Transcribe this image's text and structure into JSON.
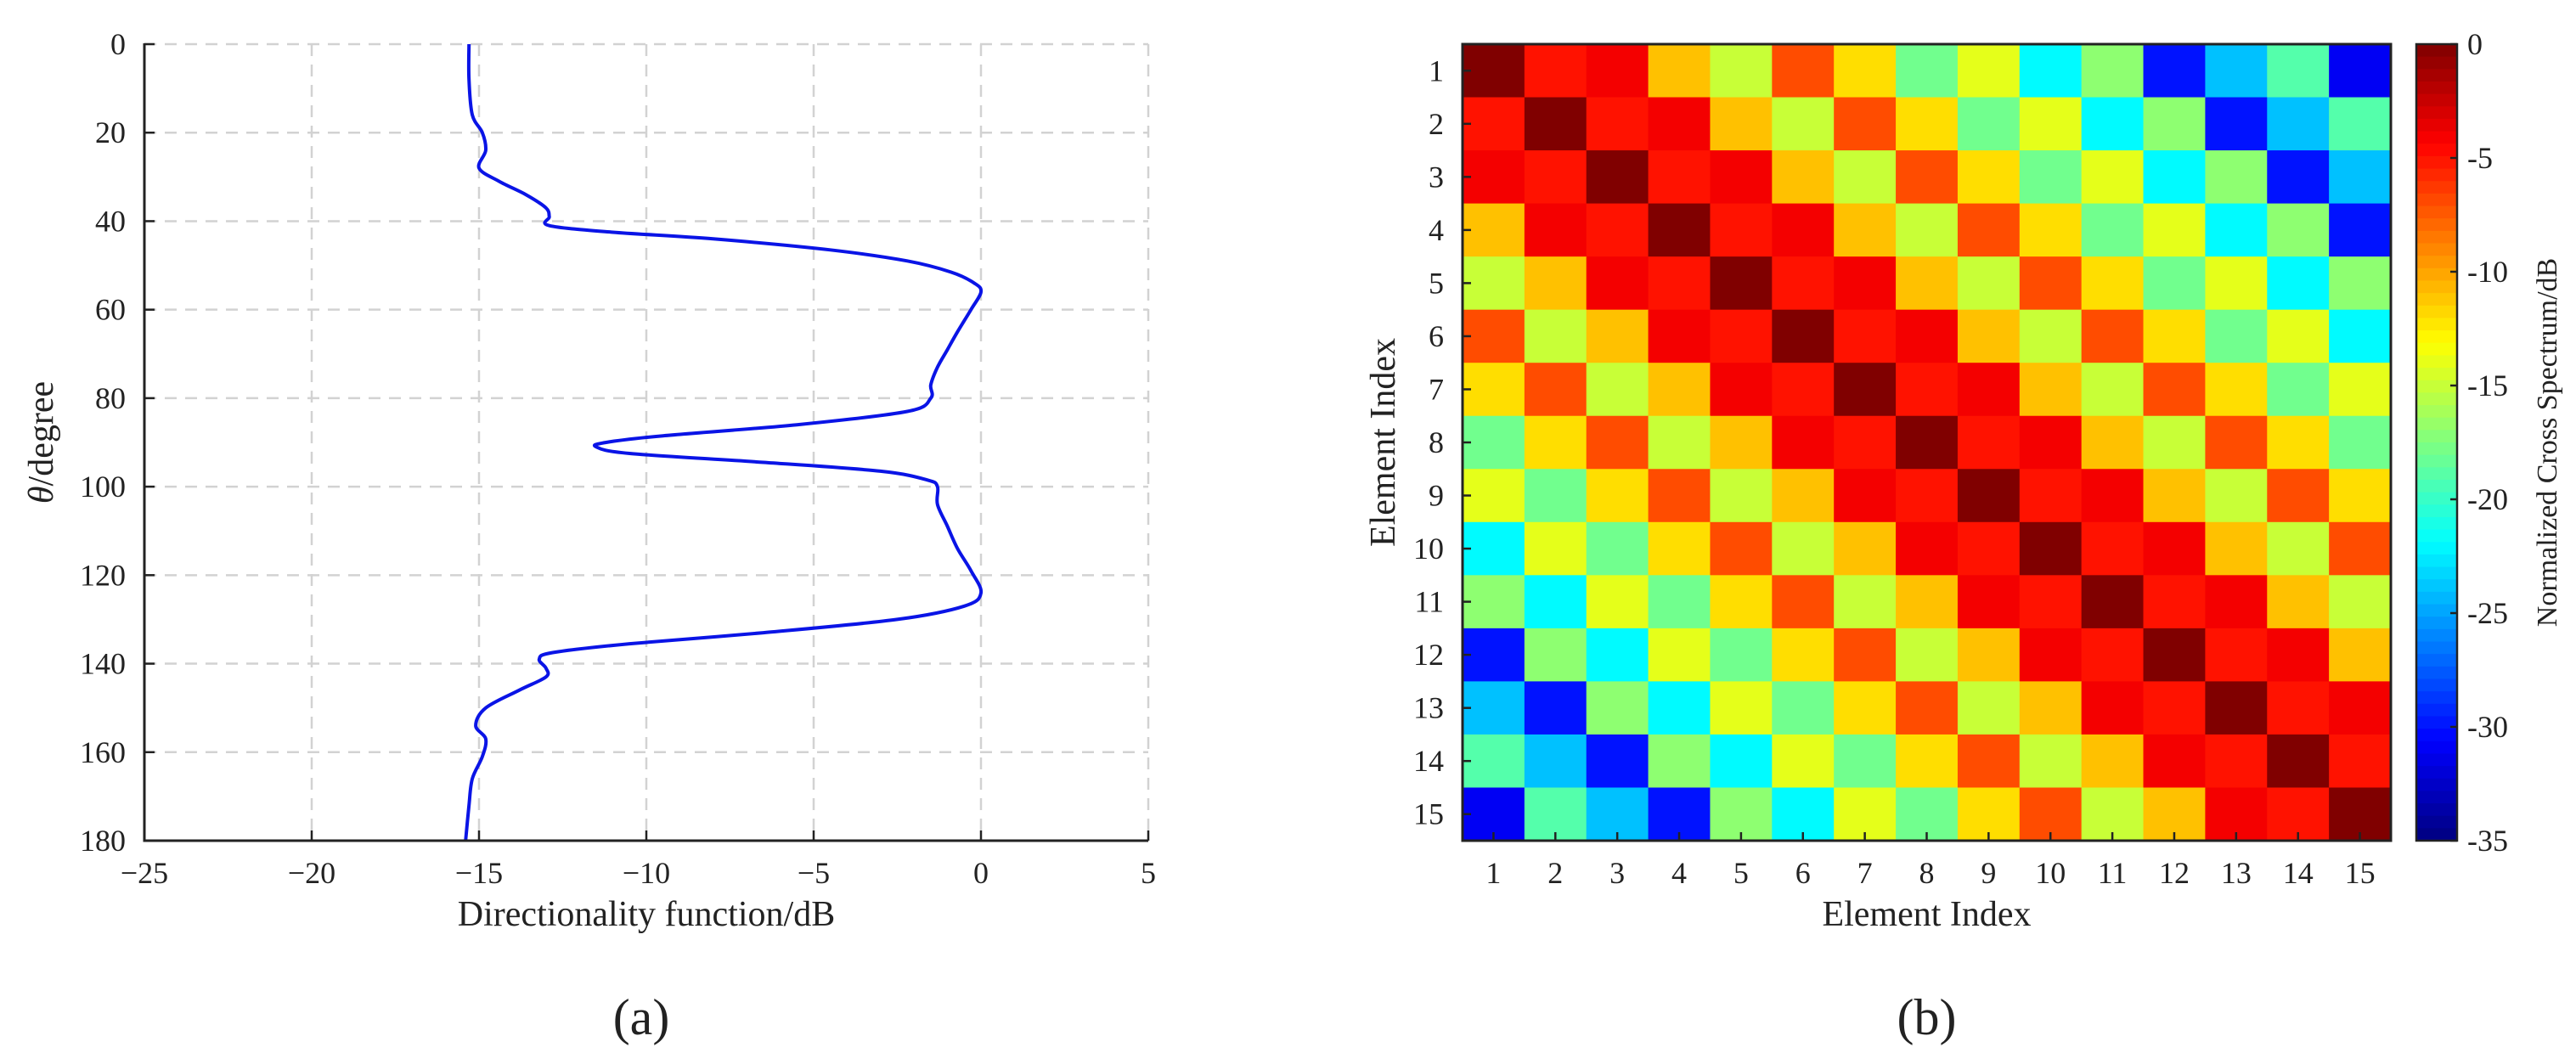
{
  "figure": {
    "panel_labels": [
      "(a)",
      "(b)"
    ]
  },
  "chart_data": [
    {
      "type": "line",
      "panel": "(a)",
      "orientation": "vertical-theta",
      "title": "",
      "xlabel": "Directionality function/dB",
      "ylabel_prefix": "θ",
      "ylabel_suffix": "/degree",
      "xlim": [
        -25,
        5
      ],
      "ylim": [
        0,
        180
      ],
      "y_reversed": true,
      "xticks": [
        -25,
        -20,
        -15,
        -10,
        -5,
        0,
        5
      ],
      "xtick_labels": [
        "−25",
        "−20",
        "−15",
        "−10",
        "−5",
        "0",
        "5"
      ],
      "yticks": [
        0,
        20,
        40,
        60,
        80,
        100,
        120,
        140,
        160,
        180
      ],
      "grid": true,
      "grid_style": "dashed",
      "line_color": "#0a14e6",
      "series": [
        {
          "points": [
            [
              -15.3,
              0
            ],
            [
              -15.3,
              8
            ],
            [
              -15.2,
              16
            ],
            [
              -14.9,
              20
            ],
            [
              -14.8,
              24
            ],
            [
              -15.0,
              28
            ],
            [
              -14.4,
              31
            ],
            [
              -13.6,
              34
            ],
            [
              -13.0,
              37
            ],
            [
              -12.9,
              39
            ],
            [
              -12.9,
              41
            ],
            [
              -11.0,
              42.5
            ],
            [
              -8.0,
              44
            ],
            [
              -4.5,
              46.5
            ],
            [
              -2.2,
              49
            ],
            [
              -0.9,
              51.5
            ],
            [
              -0.2,
              54
            ],
            [
              0.0,
              56
            ],
            [
              -0.3,
              60
            ],
            [
              -0.7,
              65
            ],
            [
              -1.0,
              69
            ],
            [
              -1.3,
              73
            ],
            [
              -1.5,
              77
            ],
            [
              -1.5,
              80
            ],
            [
              -2.2,
              83
            ],
            [
              -5.5,
              86
            ],
            [
              -9.5,
              88.5
            ],
            [
              -11.2,
              90
            ],
            [
              -11.5,
              91
            ],
            [
              -10.5,
              92.5
            ],
            [
              -6.5,
              94.5
            ],
            [
              -3.0,
              96.5
            ],
            [
              -1.6,
              98.5
            ],
            [
              -1.3,
              100
            ],
            [
              -1.3,
              104
            ],
            [
              -1.0,
              109
            ],
            [
              -0.7,
              114
            ],
            [
              -0.3,
              119
            ],
            [
              0.0,
              124
            ],
            [
              -0.5,
              127
            ],
            [
              -2.5,
              130
            ],
            [
              -6.5,
              133
            ],
            [
              -10.5,
              135.5
            ],
            [
              -12.8,
              137.5
            ],
            [
              -13.2,
              139
            ],
            [
              -13.0,
              141
            ],
            [
              -13.0,
              143
            ],
            [
              -13.8,
              146
            ],
            [
              -14.8,
              150
            ],
            [
              -15.1,
              154
            ],
            [
              -14.8,
              157
            ],
            [
              -14.9,
              161
            ],
            [
              -15.2,
              166
            ],
            [
              -15.3,
              172
            ],
            [
              -15.4,
              180
            ]
          ]
        }
      ]
    },
    {
      "type": "heatmap",
      "panel": "(b)",
      "title": "",
      "xlabel": "Element Index",
      "ylabel": "Element Index",
      "colorbar_label": "Normalized Cross Spectrum/dB",
      "colorbar_ticks": [
        0,
        -5,
        -10,
        -15,
        -20,
        -25,
        -30,
        -35
      ],
      "colorbar_range": [
        -35,
        0
      ],
      "colormap": "jet",
      "x_categories": [
        "1",
        "2",
        "3",
        "4",
        "5",
        "6",
        "7",
        "8",
        "9",
        "10",
        "11",
        "12",
        "13",
        "14",
        "15"
      ],
      "y_categories": [
        "1",
        "2",
        "3",
        "4",
        "5",
        "6",
        "7",
        "8",
        "9",
        "10",
        "11",
        "12",
        "13",
        "14",
        "15"
      ],
      "diagonal_offset_values": [
        0,
        -5,
        -4,
        -11,
        -15,
        -7,
        -12,
        -18,
        -14,
        -22,
        -17,
        -30,
        -24,
        -19,
        -31
      ]
    }
  ]
}
